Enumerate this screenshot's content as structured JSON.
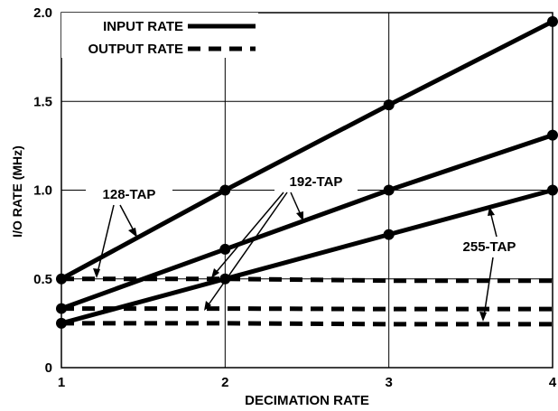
{
  "chart_data": {
    "type": "line",
    "title": "",
    "xlabel": "DECIMATION RATE",
    "ylabel": "I/O RATE (MHz)",
    "xlim": [
      1,
      4
    ],
    "ylim": [
      0,
      2.0
    ],
    "x_ticks": [
      "1",
      "2",
      "3",
      "4"
    ],
    "y_ticks": [
      "0",
      "0.5",
      "1.0",
      "1.5",
      "2.0"
    ],
    "grid": true,
    "x": [
      1,
      2,
      3,
      4
    ],
    "legend": {
      "placement": "top-left",
      "entries": [
        {
          "label": "INPUT RATE",
          "style": "solid"
        },
        {
          "label": "OUTPUT RATE",
          "style": "dashed"
        }
      ]
    },
    "series": [
      {
        "name": "128-TAP",
        "kind": "input",
        "values": [
          0.5,
          1.0,
          1.48,
          1.95
        ]
      },
      {
        "name": "192-TAP",
        "kind": "input",
        "values": [
          0.333,
          0.667,
          1.0,
          1.31
        ]
      },
      {
        "name": "255-TAP",
        "kind": "input",
        "values": [
          0.25,
          0.5,
          0.75,
          1.0
        ]
      },
      {
        "name": "128-TAP",
        "kind": "output",
        "values": [
          0.5,
          0.5,
          0.49,
          0.49
        ]
      },
      {
        "name": "192-TAP",
        "kind": "output",
        "values": [
          0.333,
          0.333,
          0.33,
          0.33
        ]
      },
      {
        "name": "255-TAP",
        "kind": "output",
        "values": [
          0.25,
          0.25,
          0.245,
          0.245
        ]
      }
    ],
    "annotations": [
      "128-TAP",
      "192-TAP",
      "255-TAP"
    ]
  }
}
